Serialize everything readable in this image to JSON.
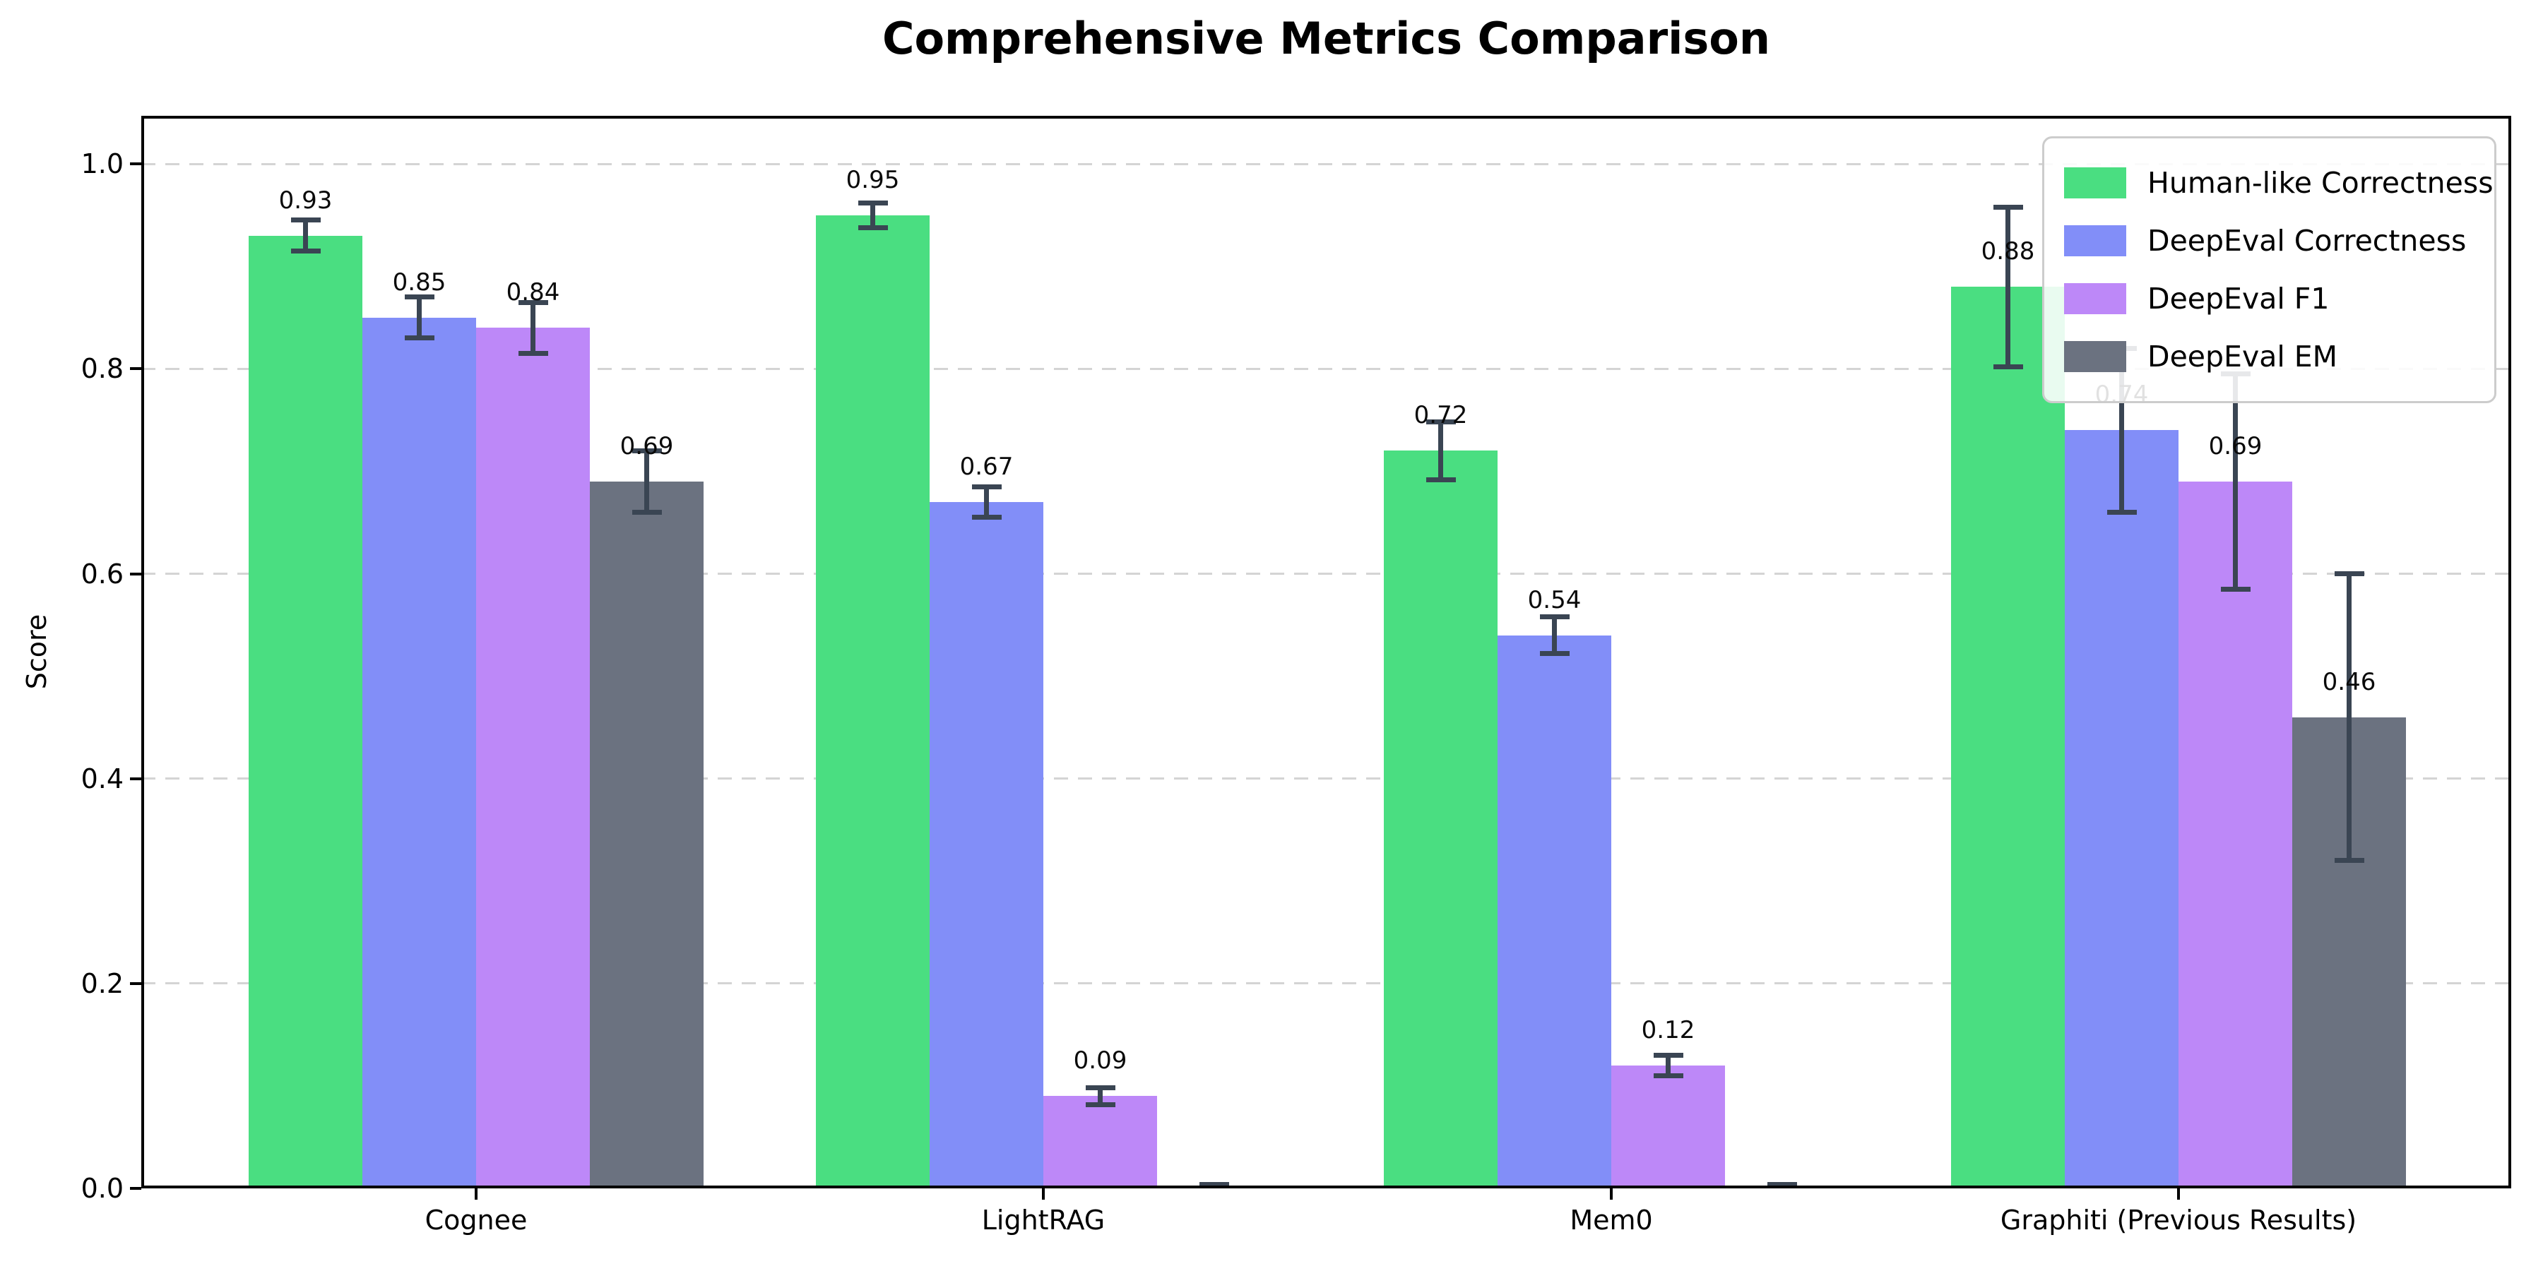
{
  "chart_data": {
    "type": "bar",
    "title": "Comprehensive Metrics Comparison",
    "xlabel": "",
    "ylabel": "Score",
    "ylim": [
      0,
      1.047
    ],
    "grid": "horizontal-dashed",
    "legend_position": "upper right",
    "background_color": "#ffffff",
    "error_bar_color": "#3a4553",
    "categories": [
      "Cognee",
      "LightRAG",
      "Mem0",
      "Graphiti (Previous Results)"
    ],
    "ytick_values": [
      0.0,
      0.2,
      0.4,
      0.6,
      0.8,
      1.0
    ],
    "ytick_labels": [
      "0.0",
      "0.2",
      "0.4",
      "0.6",
      "0.8",
      "1.0"
    ],
    "series": [
      {
        "name": "Human-like Correctness",
        "color": "#4ade81",
        "values": [
          0.93,
          0.95,
          0.72,
          0.88
        ],
        "errors": [
          0.015,
          0.012,
          0.028,
          0.078
        ],
        "labels": [
          "0.93",
          "0.95",
          "0.72",
          "0.88"
        ]
      },
      {
        "name": "DeepEval Correctness",
        "color": "#828ef8",
        "values": [
          0.85,
          0.67,
          0.54,
          0.74
        ],
        "errors": [
          0.02,
          0.015,
          0.018,
          0.08
        ],
        "labels": [
          "0.85",
          "0.67",
          "0.54",
          "0.74"
        ]
      },
      {
        "name": "DeepEval F1",
        "color": "#bd88f8",
        "values": [
          0.84,
          0.09,
          0.12,
          0.69
        ],
        "errors": [
          0.025,
          0.008,
          0.01,
          0.105
        ],
        "labels": [
          "0.84",
          "0.09",
          "0.12",
          "0.69"
        ]
      },
      {
        "name": "DeepEval EM",
        "color": "#6b7280",
        "values": [
          0.69,
          0.0,
          0.0,
          0.46
        ],
        "errors": [
          0.03,
          0.004,
          0.004,
          0.14
        ],
        "labels": [
          "0.69",
          "",
          "",
          "0.46"
        ]
      }
    ]
  }
}
